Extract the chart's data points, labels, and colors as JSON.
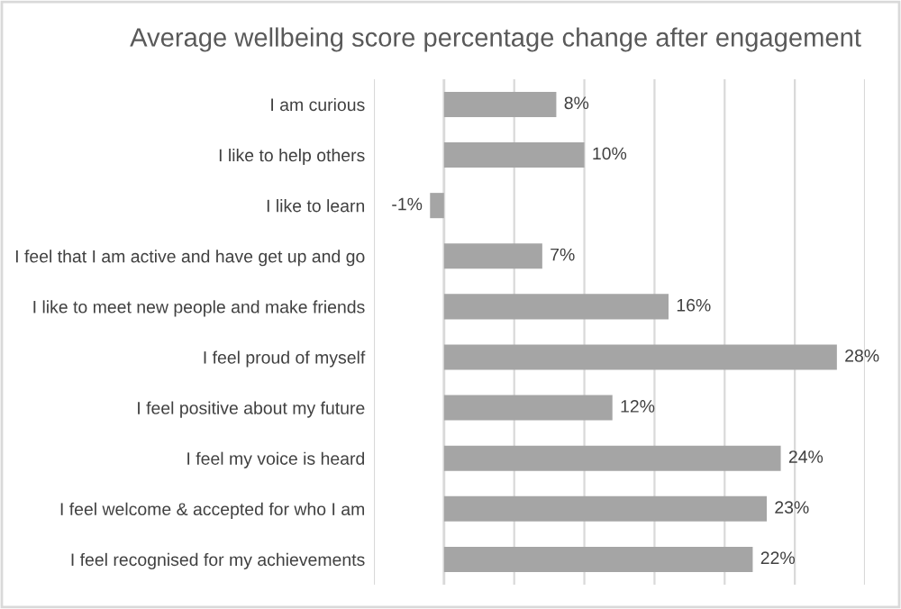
{
  "chart_data": {
    "type": "bar",
    "orientation": "horizontal",
    "title": "Average wellbeing score percentage change after engagement",
    "categories": [
      "I am curious",
      "I like to help others",
      "I like to learn",
      "I feel that I am active and have get up and go",
      "I like to meet new people and make friends",
      "I feel proud of myself",
      "I feel positive about my future",
      "I feel my voice is heard",
      "I feel welcome & accepted for who I am",
      "I feel recognised for my achievements"
    ],
    "values": [
      8,
      10,
      -1,
      7,
      16,
      28,
      12,
      24,
      23,
      22
    ],
    "value_labels": [
      "8%",
      "10%",
      "-1%",
      "7%",
      "16%",
      "28%",
      "12%",
      "24%",
      "23%",
      "22%"
    ],
    "color": "#a5a5a5",
    "xlim": [
      -5,
      30
    ],
    "xticks": [
      {
        "value": -5,
        "label": null
      },
      {
        "value": 0,
        "label": null
      },
      {
        "value": 5,
        "label": null
      },
      {
        "value": 10,
        "label": null
      },
      {
        "value": 15,
        "label": null
      },
      {
        "value": 20,
        "label": null
      },
      {
        "value": 25,
        "label": null
      },
      {
        "value": 30,
        "label": null
      }
    ],
    "grid": "x",
    "legend": false
  }
}
